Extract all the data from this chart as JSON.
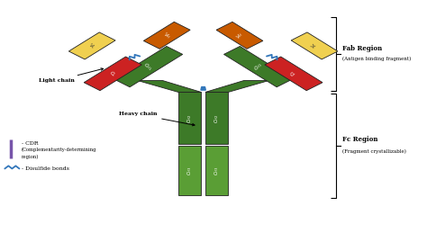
{
  "green_dark": "#3d7a28",
  "green_light": "#5a9e35",
  "red_color": "#cc2222",
  "yellow_color": "#f0d050",
  "orange_color": "#c85a00",
  "purple_color": "#7755aa",
  "blue_color": "#3377bb",
  "fab_label": "Fab Region",
  "fab_sub": "(Antigen binding fragment)",
  "fc_label": "Fc Region",
  "fc_sub": "(Fragment crystallizable)",
  "light_chain": "Light chain",
  "heavy_chain": "Heavy chain",
  "cdr_label": "- CDR",
  "cdr_sub1": "(Complementarity-determining",
  "cdr_sub2": "region)",
  "disulfide_label": "- Disulfide bonds"
}
